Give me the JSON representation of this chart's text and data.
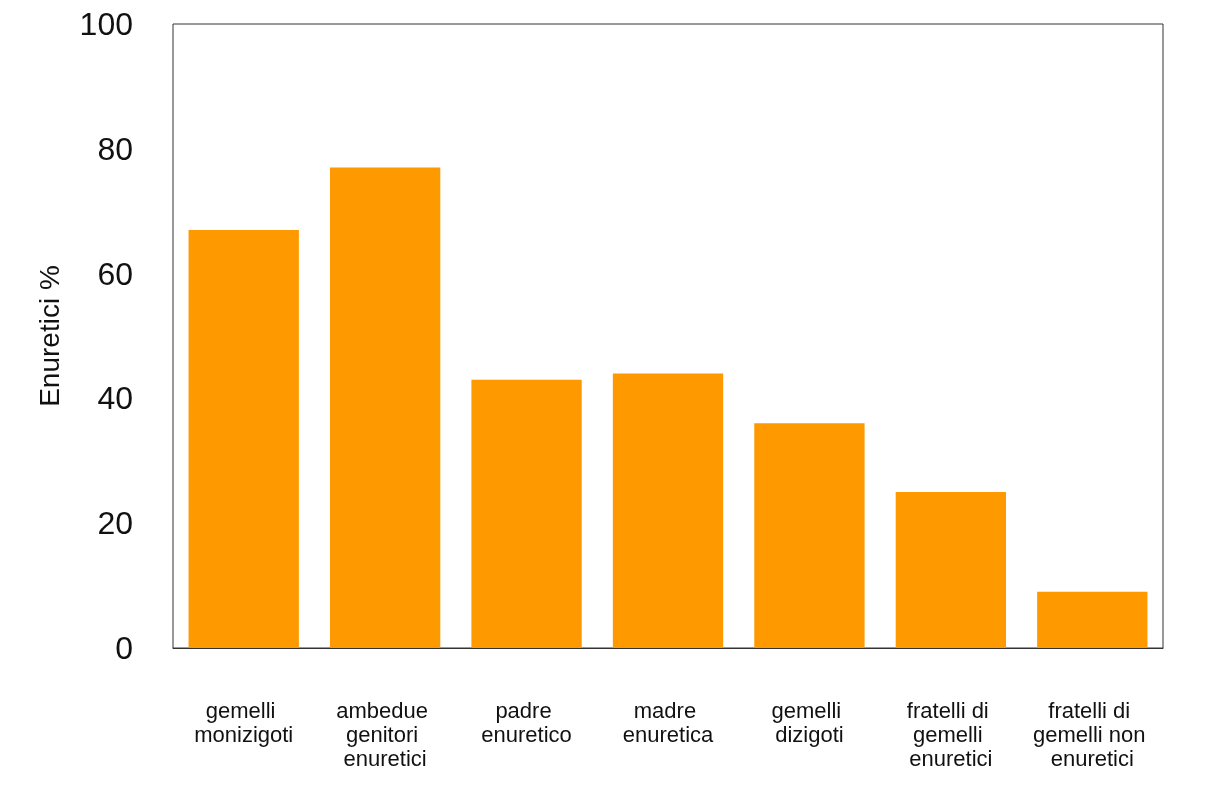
{
  "chart_data": {
    "type": "bar",
    "ylabel": "Enuretici %",
    "categories": [
      "gemelli monizigoti",
      "ambedue genitori enuretici",
      "padre enuretico",
      "madre enuretica",
      "gemelli dizigoti",
      "fratelli di gemelli enuretici",
      "fratelli di gemelli non enuretici"
    ],
    "values": [
      67,
      77,
      43,
      44,
      36,
      25,
      9
    ],
    "color": "#ff9900",
    "ylim": [
      0,
      100
    ],
    "yticks": [
      0,
      20,
      40,
      60,
      80,
      100
    ],
    "grid": false
  }
}
